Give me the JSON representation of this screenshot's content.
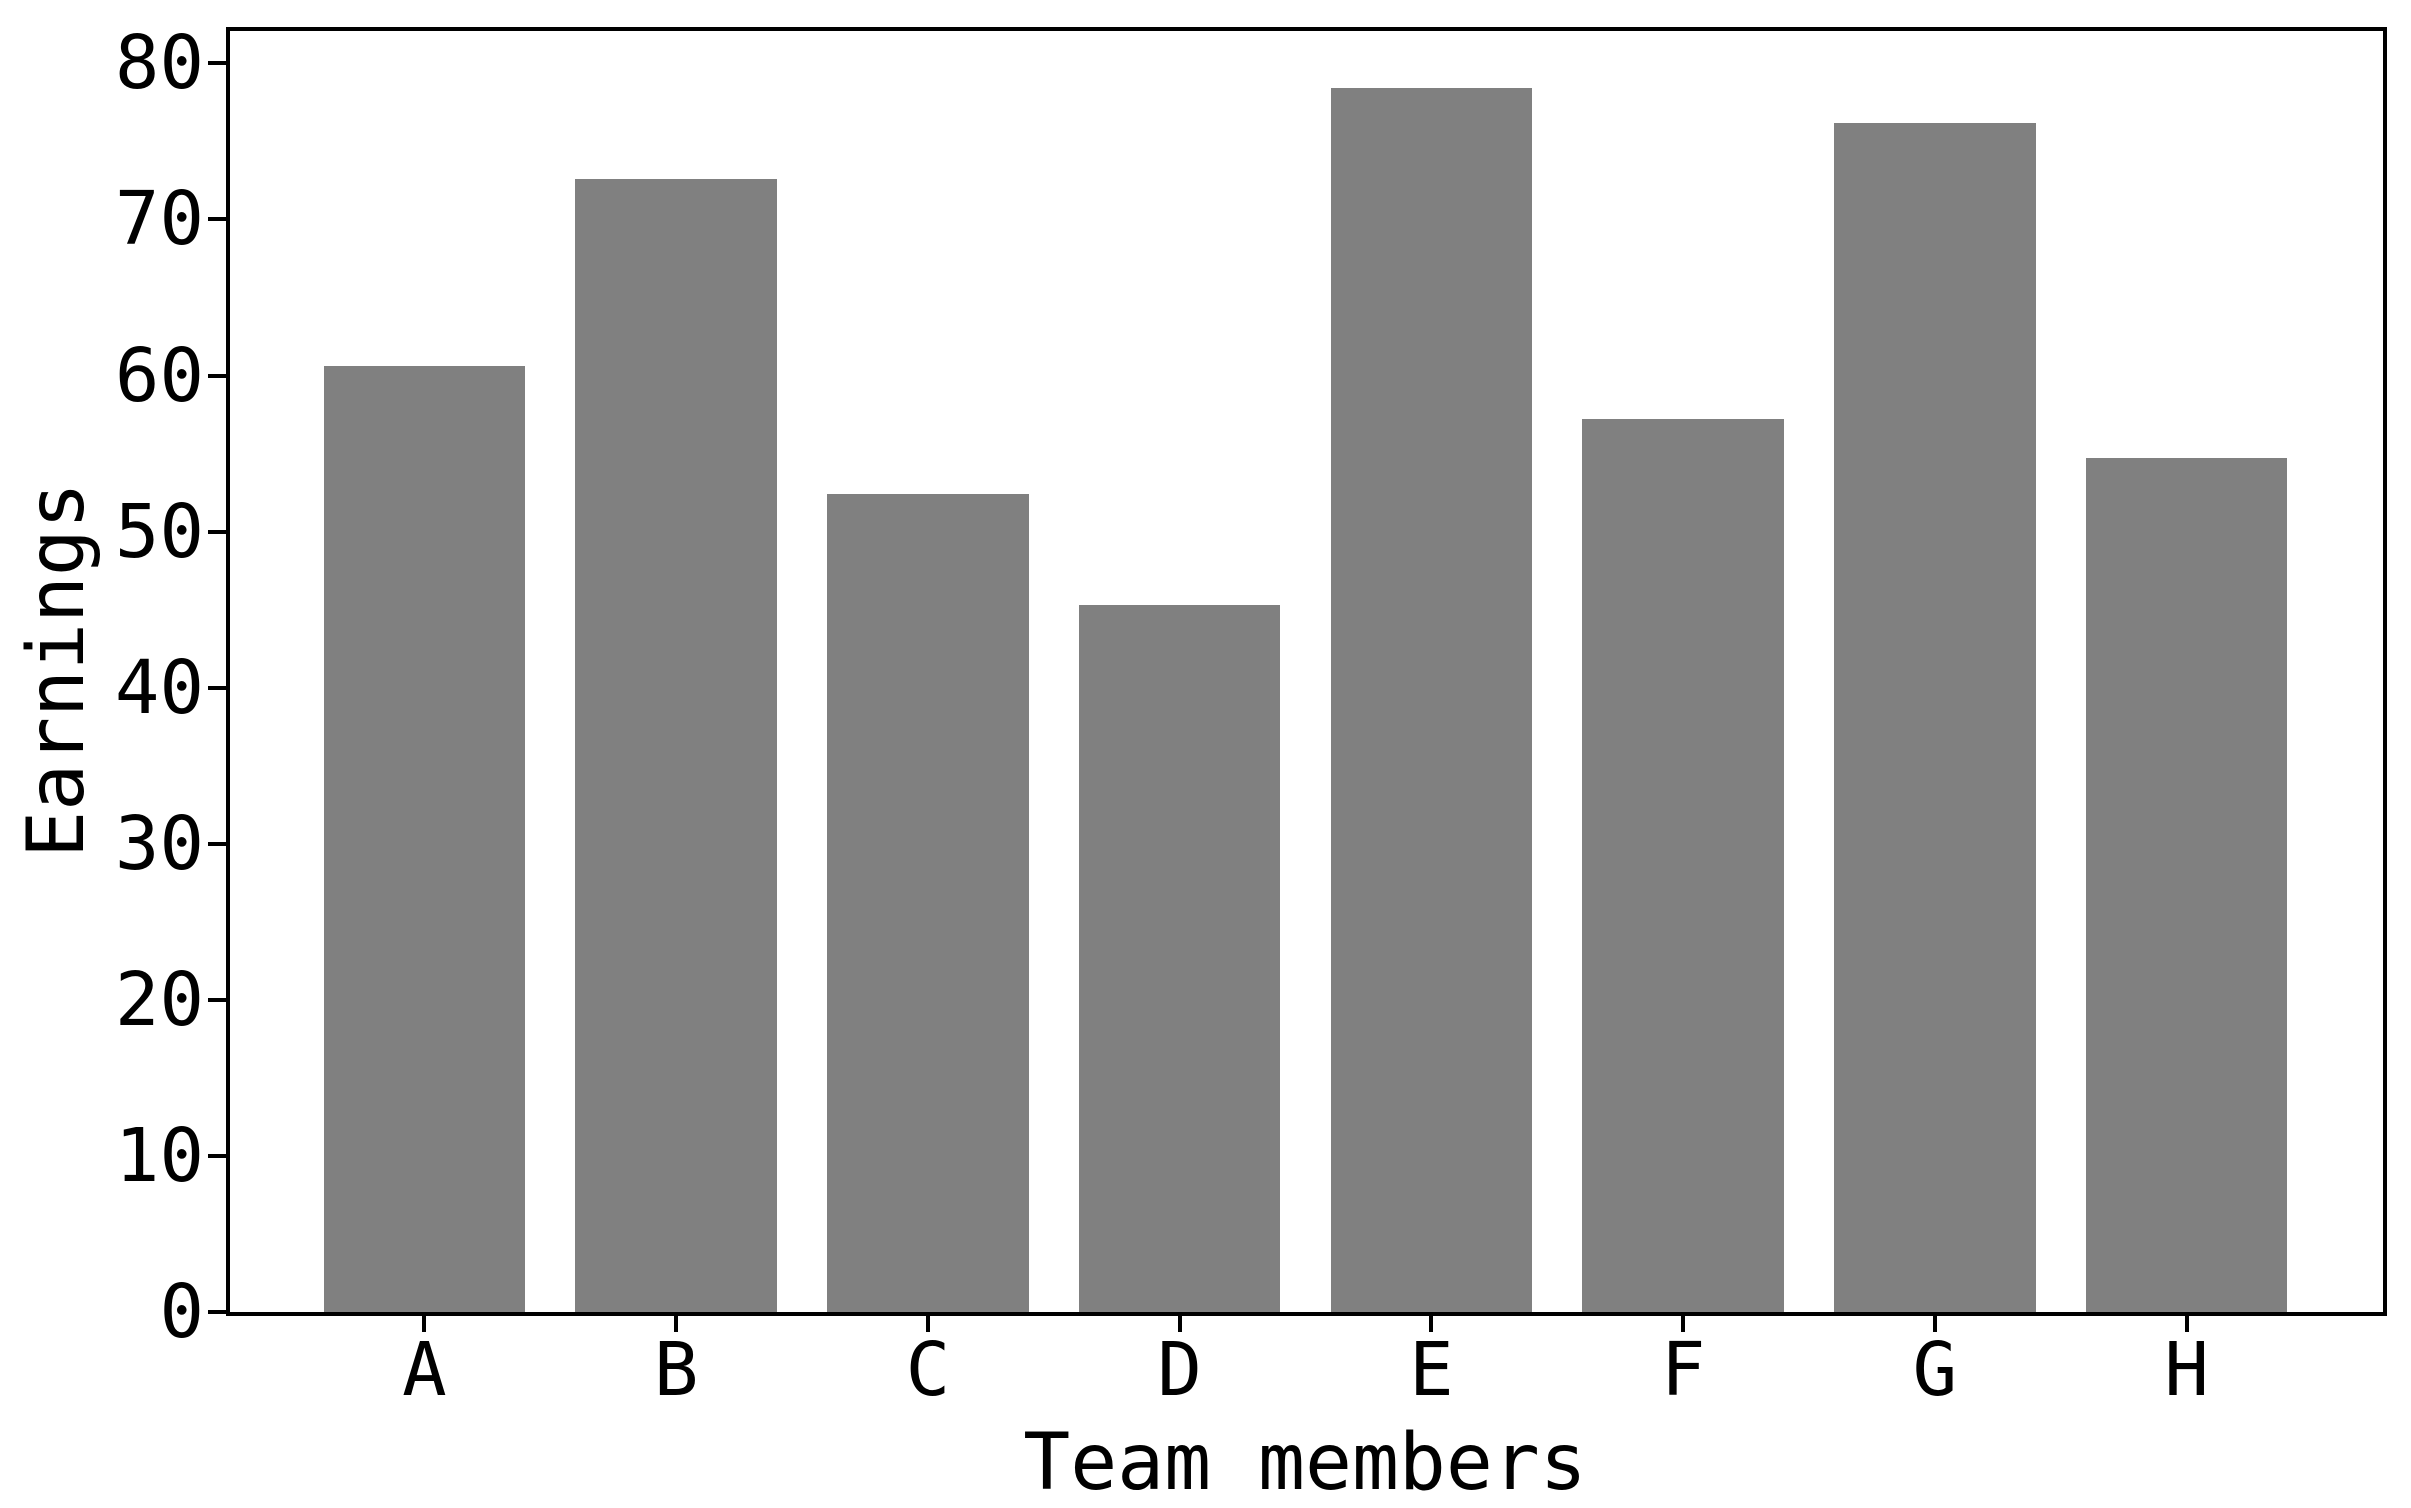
{
  "chart_data": {
    "type": "bar",
    "title": "",
    "xlabel": "Team members",
    "ylabel": "Earnings",
    "categories": [
      "A",
      "B",
      "C",
      "D",
      "E",
      "F",
      "G",
      "H"
    ],
    "values": [
      60.6,
      72.6,
      52.4,
      45.3,
      78.4,
      57.2,
      76.2,
      54.7
    ],
    "yticks": [
      0,
      10,
      20,
      30,
      40,
      50,
      60,
      70,
      80
    ],
    "ytick_labels": [
      "0",
      "10",
      "20",
      "30",
      "40",
      "50",
      "60",
      "70",
      "80"
    ],
    "ylim": [
      0,
      82.2
    ],
    "xlim": [
      -0.78,
      7.78
    ],
    "bar_width_fraction": 0.8,
    "grid": false,
    "legend_position": "none",
    "bar_color": "#808080",
    "axis_color": "#000000",
    "text_color": "#000000",
    "background_color": "#ffffff"
  }
}
